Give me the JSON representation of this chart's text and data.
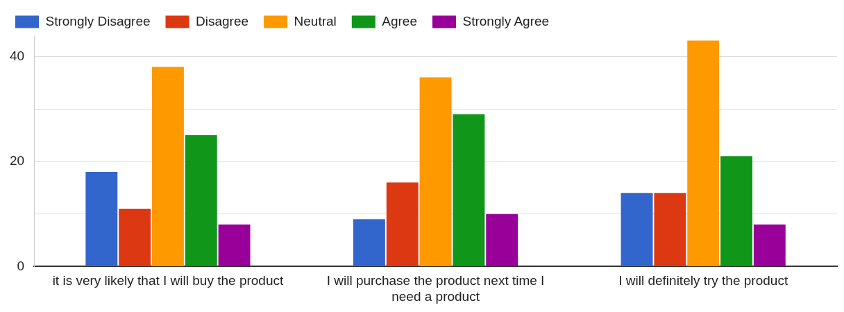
{
  "chart_data": {
    "type": "bar",
    "categories": [
      "it is very likely that I will buy the product",
      "I will purchase the product next time I need a product",
      "I will definitely try the product"
    ],
    "series": [
      {
        "name": "Strongly Disagree",
        "color": "#3366cc",
        "values": [
          18,
          9,
          14
        ]
      },
      {
        "name": "Disagree",
        "color": "#dc3912",
        "values": [
          11,
          16,
          14
        ]
      },
      {
        "name": "Neutral",
        "color": "#ff9900",
        "values": [
          38,
          36,
          43
        ]
      },
      {
        "name": "Agree",
        "color": "#109618",
        "values": [
          25,
          29,
          21
        ]
      },
      {
        "name": "Strongly Agree",
        "color": "#990099",
        "values": [
          8,
          10,
          8
        ]
      }
    ],
    "ylim": [
      0,
      44
    ],
    "yticks": [
      0,
      {
        "value": 10,
        "label": null
      },
      20,
      {
        "value": 30,
        "label": null
      },
      40
    ],
    "grid": "y",
    "legend": "top left"
  }
}
